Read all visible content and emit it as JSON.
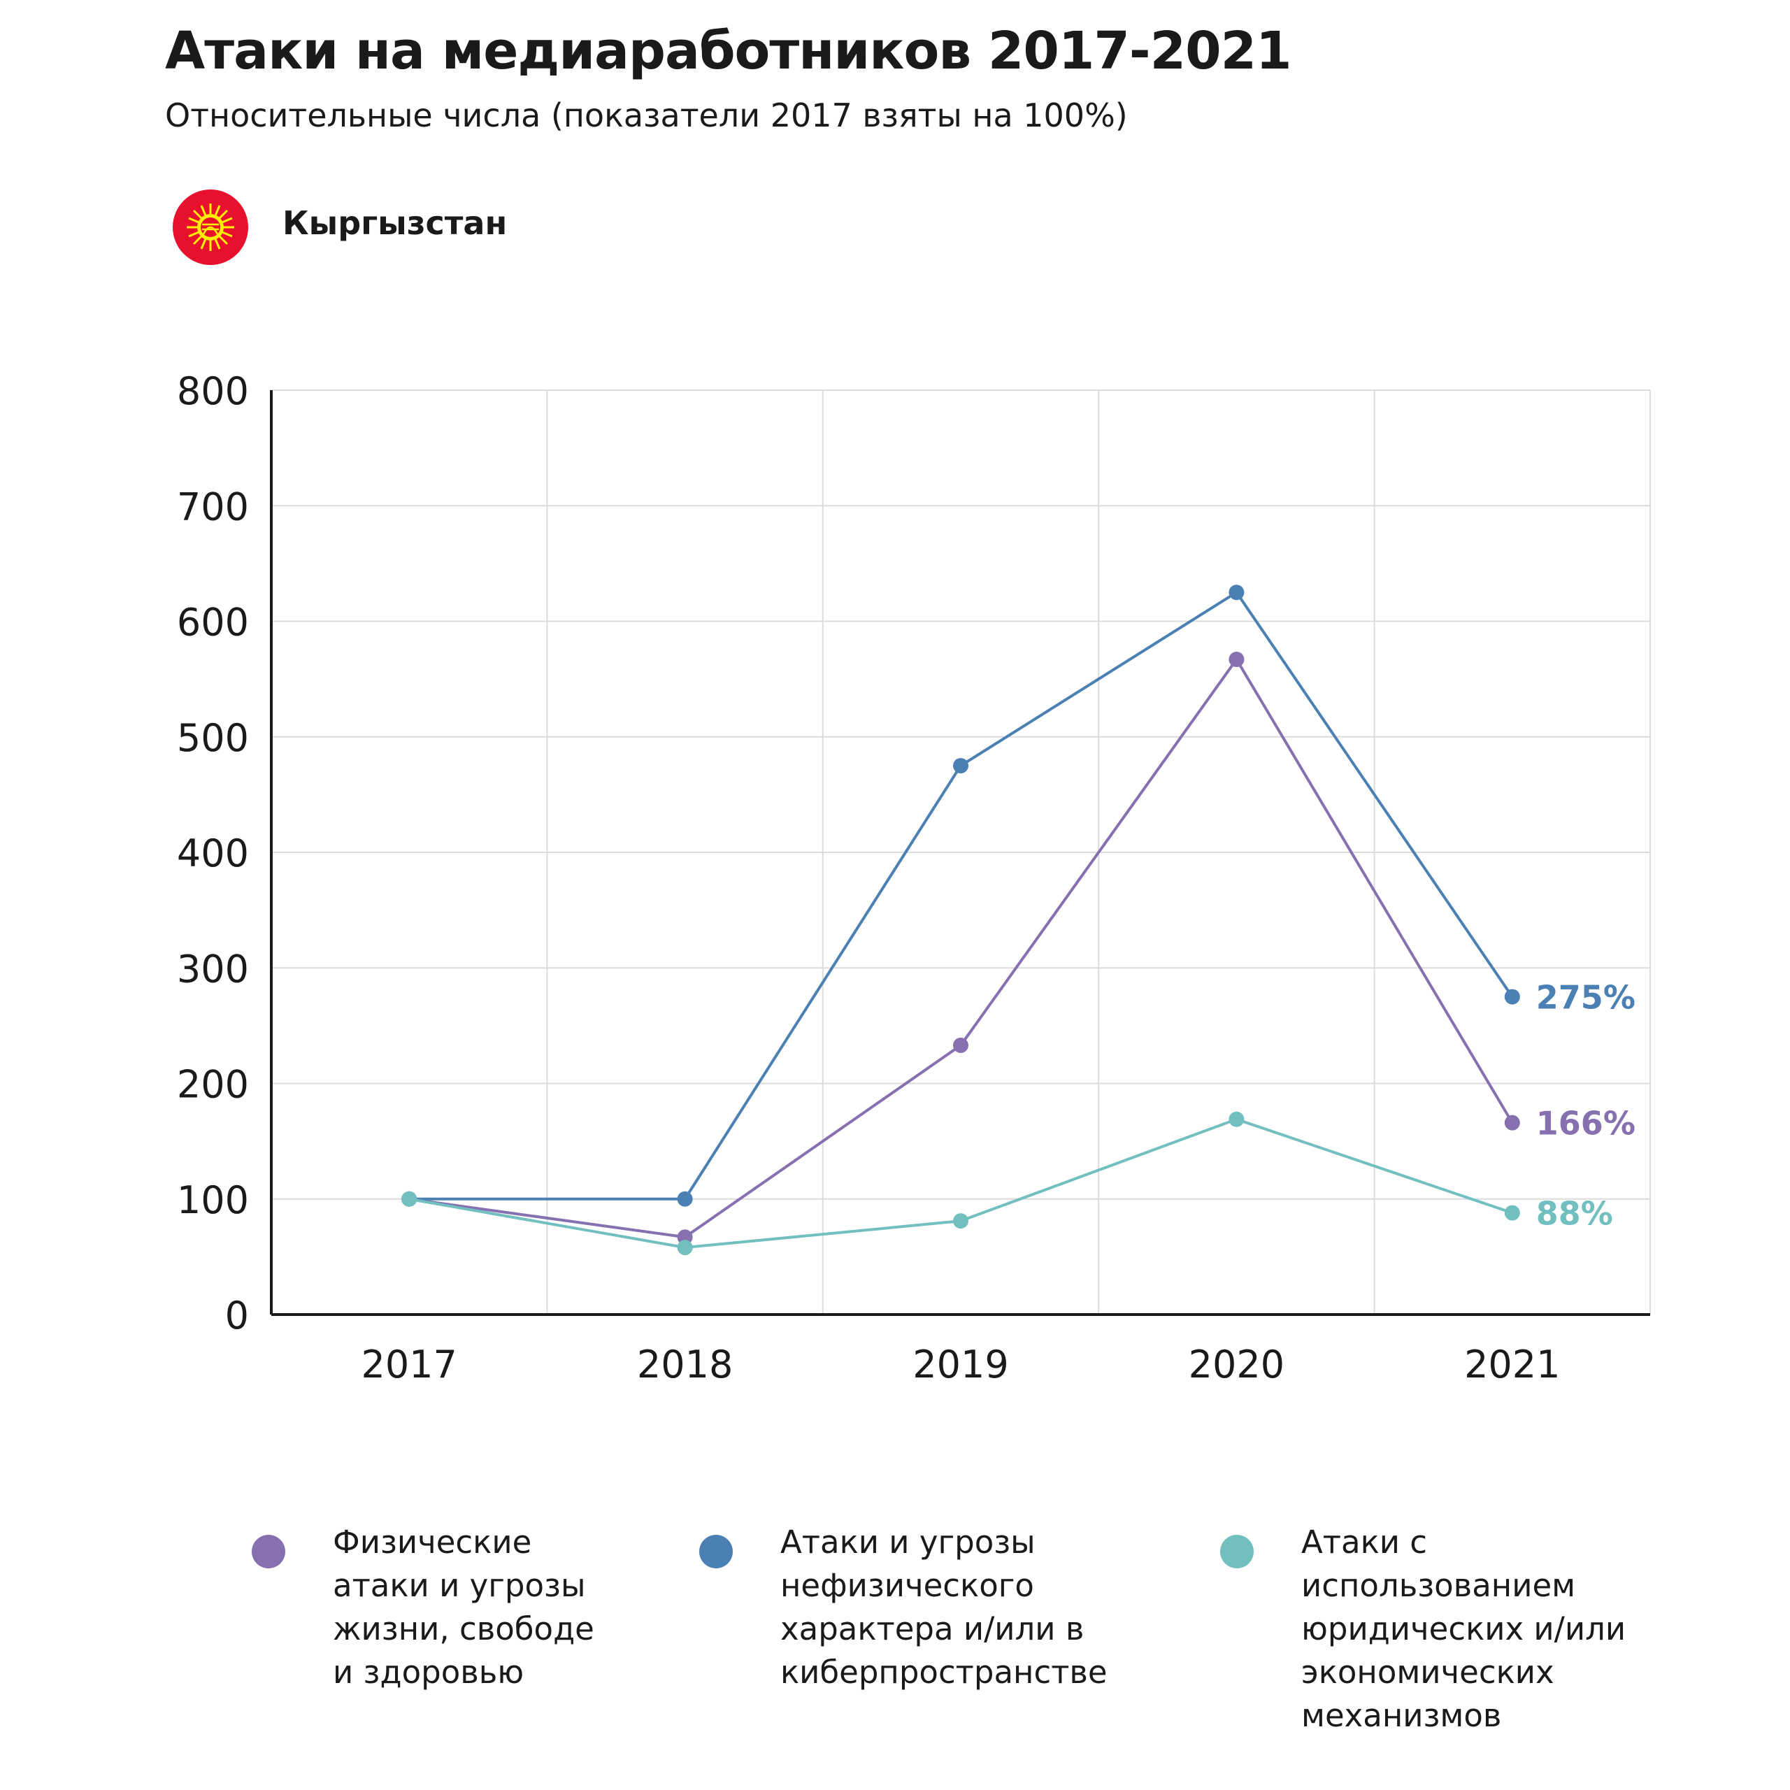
{
  "header": {
    "title": "Атаки на медиаработников 2017-2021",
    "subtitle": "Относительные числа (показатели 2017 взяты на 100%)",
    "country": "Кыргызстан",
    "flag_icon": "kyrgyzstan-flag-icon"
  },
  "colors": {
    "physical": "#8670b0",
    "cyber": "#4a80b4",
    "legal": "#72bfc0",
    "grid": "#dcdcdc",
    "axis": "#1a1a1a",
    "flag_red": "#e8112d",
    "flag_sun": "#ffef00"
  },
  "chart_data": {
    "type": "line",
    "x": [
      "2017",
      "2018",
      "2019",
      "2020",
      "2021"
    ],
    "ylim": [
      0,
      800
    ],
    "yticks": [
      "0",
      "100",
      "200",
      "300",
      "400",
      "500",
      "600",
      "700",
      "800"
    ],
    "grid": true,
    "legend_position": "bottom",
    "series": [
      {
        "key": "physical",
        "name": "Физические\nатаки и угрозы\nжизни, свободе\nи здоровью",
        "values": [
          100,
          67,
          233,
          567,
          166
        ],
        "end_label": "166%"
      },
      {
        "key": "cyber",
        "name": "Атаки и угрозы\nнефизического\nхарактера и/или в\nкиберпространстве",
        "values": [
          100,
          100,
          475,
          625,
          275
        ],
        "end_label": "275%"
      },
      {
        "key": "legal",
        "name": "Атаки с\nиспользованием\nюридических и/или\nэкономических\nмеханизмов",
        "values": [
          100,
          58,
          81,
          169,
          88
        ],
        "end_label": "88%"
      }
    ]
  }
}
